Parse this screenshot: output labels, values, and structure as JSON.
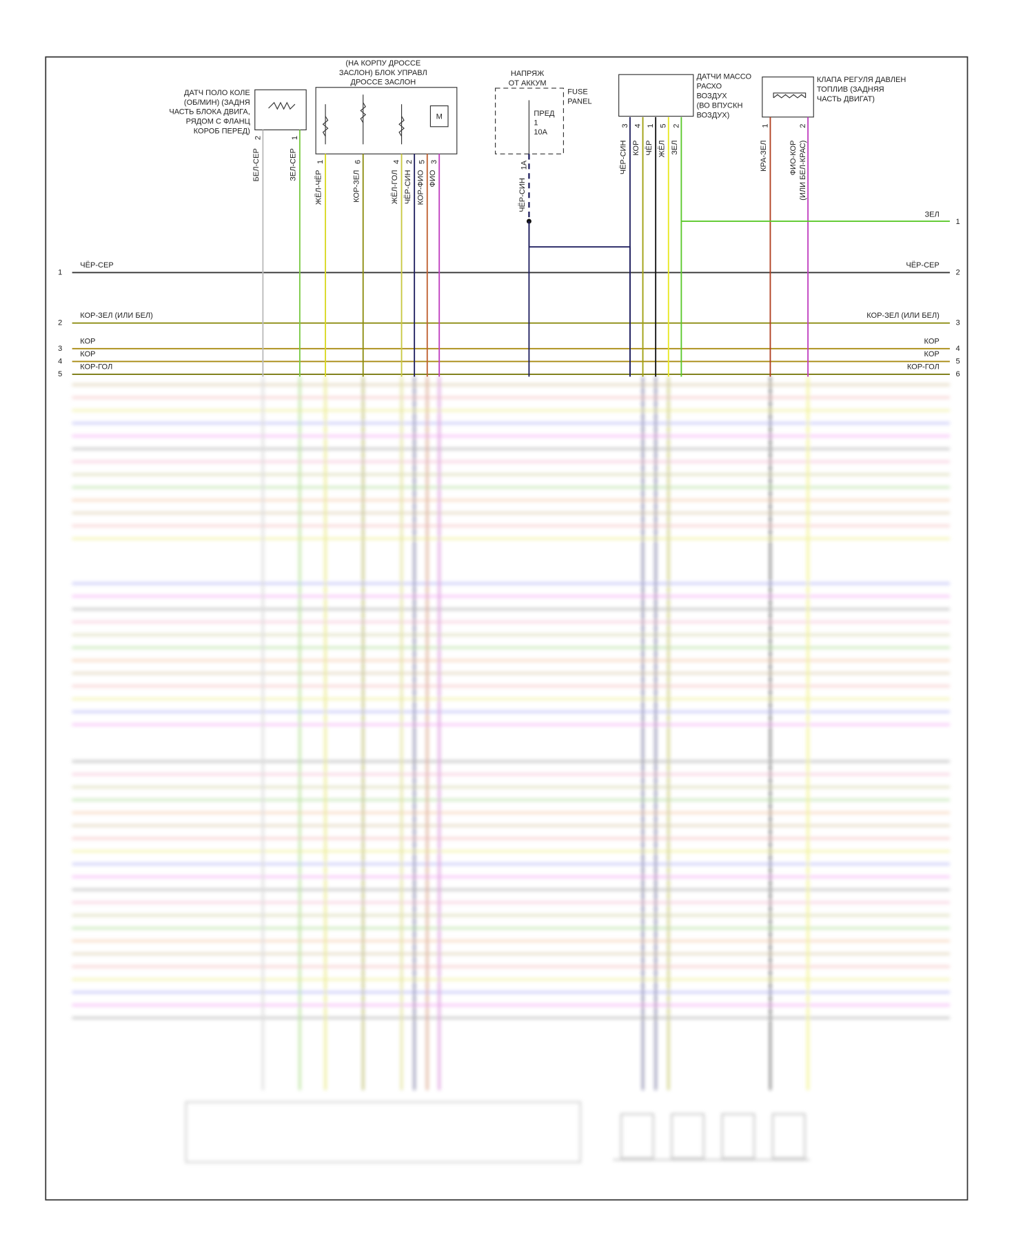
{
  "components": [
    {
      "label": [
        "ДАТЧ ПОЛО КОЛЕ",
        "(ОБ/МИН) (ЗАДНЯ",
        "ЧАСТЬ БЛОКА ДВИГА,",
        "РЯДОМ С ФЛАНЦ",
        "КОРОБ ПЕРЕД)"
      ],
      "pins": [
        "2",
        "1"
      ],
      "wires": [
        "БЕЛ-СЕР",
        "ЗЕЛ-СЕР"
      ]
    },
    {
      "label": [
        "(НА КОРПУ ДРОССЕ",
        "ЗАСЛОН) БЛОК УПРАВЛ",
        "ДРОССЕ ЗАСЛОН"
      ],
      "motor": "M",
      "pins": [
        "1",
        "6",
        "4",
        "2",
        "5",
        "3"
      ],
      "wires": [
        "ЖЁЛ-ЧЁР",
        "КОР-ЗЕЛ",
        "ЖЁЛ-ГОЛ",
        "ЧЁР-СИН",
        "КОР-ФИО",
        "ФИО"
      ]
    },
    {
      "label": [
        "НАПРЯЖ",
        "ОТ АККУМ"
      ],
      "panel": [
        "FUSE",
        "PANEL"
      ],
      "fuse": [
        "ПРЕД",
        "1",
        "10А"
      ],
      "pins": [
        "1А"
      ],
      "wires": [
        "ЧЁР-СИН"
      ]
    },
    {
      "label": [
        "ДАТЧИ МАССО",
        "РАСХО",
        "ВОЗДУХ",
        "(ВО ВПУСКН",
        "ВОЗДУХ)"
      ],
      "pins": [
        "3",
        "4",
        "1",
        "5",
        "2"
      ],
      "wires": [
        "ЧЁР-СИН",
        "КОР",
        "ЧЁР",
        "ЖЁЛ",
        "ЗЕЛ"
      ]
    },
    {
      "label": [
        "КЛАПА РЕГУЛЯ ДАВЛЕН",
        "ТОПЛИВ (ЗАДНЯЯ",
        "ЧАСТЬ ДВИГАТ)"
      ],
      "pins": [
        "1",
        "2"
      ],
      "wires": [
        "КРА-ЗЕЛ",
        "ФИО-КОР",
        "(ИЛИ БЕЛ-КРАС)"
      ]
    }
  ],
  "side_wire": {
    "label": "ЗЕЛ",
    "pin": "1"
  },
  "buses": [
    {
      "left_pin": "1",
      "left_label": "ЧЁР-СЕР",
      "right_label": "ЧЁР-СЕР",
      "right_pin": "2"
    },
    {
      "left_pin": "2",
      "left_label": "КОР-ЗЕЛ    (ИЛИ БЕЛ)",
      "right_label": "КОР-ЗЕЛ    (ИЛИ БЕЛ)",
      "right_pin": "3"
    },
    {
      "left_pin": "3",
      "left_label": "КОР",
      "right_label": "КОР",
      "right_pin": "4"
    },
    {
      "left_pin": "4",
      "left_label": "КОР",
      "right_label": "КОР",
      "right_pin": "5"
    },
    {
      "left_pin": "5",
      "left_label": "КОР-ГОЛ",
      "right_label": "КОР-ГОЛ",
      "right_pin": "6"
    }
  ]
}
